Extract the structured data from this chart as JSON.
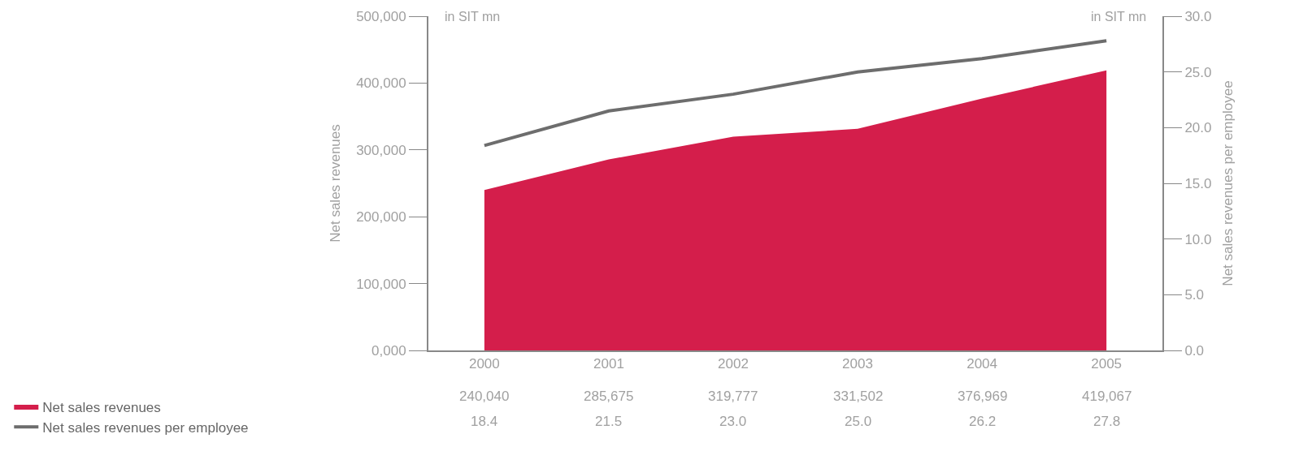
{
  "chart_data": {
    "type": "area",
    "ylabel": "Net sales revenues",
    "y2label": "Net sales revenues per employee",
    "categories": [
      "2000",
      "2001",
      "2002",
      "2003",
      "2004",
      "2005"
    ],
    "series": [
      {
        "name": "Net sales revenues",
        "color": "#d41e4b",
        "values": [
          240040,
          285675,
          319777,
          331502,
          376969,
          419067
        ],
        "value_labels": [
          "240,040",
          "285,675",
          "319,777",
          "331,502",
          "376,969",
          "419,067"
        ]
      },
      {
        "name": "Net sales revenues per employee",
        "type": "line",
        "axis": "y2",
        "color": "#6d6d6d",
        "values": [
          18.4,
          21.5,
          23.0,
          25.0,
          26.2,
          27.8
        ],
        "value_labels": [
          "18.4",
          "21.5",
          "23.0",
          "25.0",
          "26.2",
          "27.8"
        ]
      }
    ],
    "ylim": [
      0,
      500000
    ],
    "yticks": [
      {
        "value": 0,
        "label": "0,000"
      },
      {
        "value": 100000,
        "label": "100,000"
      },
      {
        "value": 200000,
        "label": "200,000"
      },
      {
        "value": 300000,
        "label": "300,000"
      },
      {
        "value": 400000,
        "label": "400,000"
      },
      {
        "value": 500000,
        "label": "500,000"
      }
    ],
    "y2lim": [
      0,
      30
    ],
    "y2ticks": [
      {
        "value": 0,
        "label": "0.0"
      },
      {
        "value": 5,
        "label": "5.0"
      },
      {
        "value": 10,
        "label": "10.0"
      },
      {
        "value": 15,
        "label": "15.0"
      },
      {
        "value": 20,
        "label": "20.0"
      },
      {
        "value": 25,
        "label": "25.0"
      },
      {
        "value": 30,
        "label": "30.0"
      }
    ],
    "annotations": [
      "in SIT mn",
      "in SIT mn"
    ],
    "legend": "bottom left"
  }
}
